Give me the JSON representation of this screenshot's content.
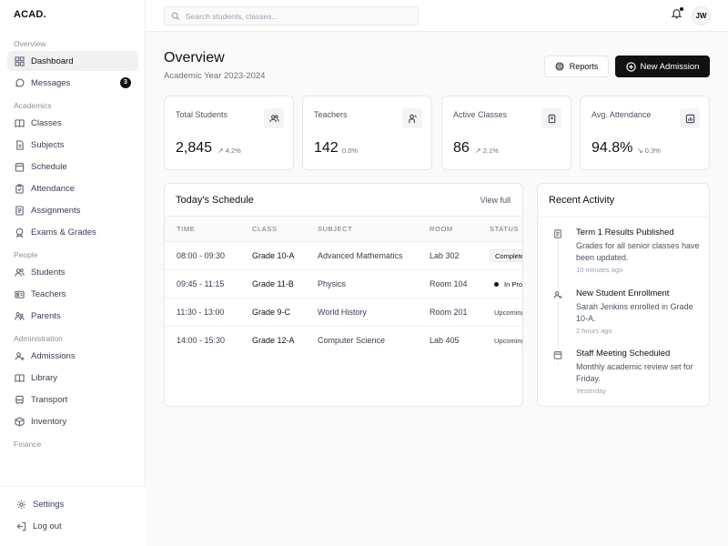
{
  "app": {
    "logo": "ACAD."
  },
  "sidebar": {
    "sections": [
      {
        "title": "Overview",
        "items": [
          {
            "label": "Dashboard",
            "icon": "grid-icon",
            "active": true
          },
          {
            "label": "Messages",
            "icon": "message-icon",
            "badge": "3"
          }
        ]
      },
      {
        "title": "Academics",
        "items": [
          {
            "label": "Classes",
            "icon": "book-icon"
          },
          {
            "label": "Subjects",
            "icon": "file-icon"
          },
          {
            "label": "Schedule",
            "icon": "calendar-icon"
          },
          {
            "label": "Attendance",
            "icon": "clipboard-icon"
          },
          {
            "label": "Assignments",
            "icon": "document-icon"
          },
          {
            "label": "Exams & Grades",
            "icon": "award-icon"
          }
        ]
      },
      {
        "title": "People",
        "items": [
          {
            "label": "Students",
            "icon": "users-icon"
          },
          {
            "label": "Teachers",
            "icon": "id-card-icon"
          },
          {
            "label": "Parents",
            "icon": "family-icon"
          }
        ]
      },
      {
        "title": "Administration",
        "items": [
          {
            "label": "Admissions",
            "icon": "user-plus-icon"
          },
          {
            "label": "Library",
            "icon": "library-icon"
          },
          {
            "label": "Transport",
            "icon": "bus-icon"
          },
          {
            "label": "Inventory",
            "icon": "box-icon"
          }
        ]
      },
      {
        "title": "Finance",
        "items": []
      }
    ],
    "footer": [
      {
        "label": "Settings",
        "icon": "gear-icon"
      },
      {
        "label": "Log out",
        "icon": "logout-icon"
      }
    ]
  },
  "topbar": {
    "search_placeholder": "Search students, classes...",
    "avatar_initials": "JW"
  },
  "header": {
    "title": "Overview",
    "subtitle": "Academic Year 2023-2024",
    "reports_label": "Reports",
    "new_admission_label": "New Admission"
  },
  "stats": [
    {
      "label": "Total Students",
      "value": "2,845",
      "delta": "4.2%",
      "trend": "up",
      "icon": "users-icon"
    },
    {
      "label": "Teachers",
      "value": "142",
      "delta": "0.0%",
      "trend": "flat",
      "icon": "teacher-icon"
    },
    {
      "label": "Active Classes",
      "value": "86",
      "delta": "2.1%",
      "trend": "up",
      "icon": "book-open-icon"
    },
    {
      "label": "Avg. Attendance",
      "value": "94.8%",
      "delta": "0.3%",
      "trend": "down",
      "icon": "bar-chart-icon"
    }
  ],
  "schedule": {
    "title": "Today's Schedule",
    "view_full": "View full",
    "columns": [
      "TIME",
      "CLASS",
      "SUBJECT",
      "ROOM",
      "STATUS"
    ],
    "rows": [
      {
        "time": "08:00 - 09:30",
        "class": "Grade 10-A",
        "subject": "Advanced Mathematics",
        "room": "Lab 302",
        "status": "Completed"
      },
      {
        "time": "09:45 - 11:15",
        "class": "Grade 11-B",
        "subject": "Physics",
        "room": "Room 104",
        "status": "In Progress"
      },
      {
        "time": "11:30 - 13:00",
        "class": "Grade 9-C",
        "subject": "World History",
        "room": "Room 201",
        "status": "Upcoming"
      },
      {
        "time": "14:00 - 15:30",
        "class": "Grade 12-A",
        "subject": "Computer Science",
        "room": "Lab 405",
        "status": "Upcoming"
      }
    ]
  },
  "activity": {
    "title": "Recent Activity",
    "items": [
      {
        "title": "Term 1 Results Published",
        "desc": "Grades for all senior classes have been updated.",
        "time": "10 minutes ago",
        "icon": "document-icon"
      },
      {
        "title": "New Student Enrollment",
        "desc": "Sarah Jenkins enrolled in Grade 10-A.",
        "time": "2 hours ago",
        "icon": "user-plus-icon"
      },
      {
        "title": "Staff Meeting Scheduled",
        "desc": "Monthly academic review set for Friday.",
        "time": "Yesterday",
        "icon": "calendar-icon"
      }
    ]
  }
}
